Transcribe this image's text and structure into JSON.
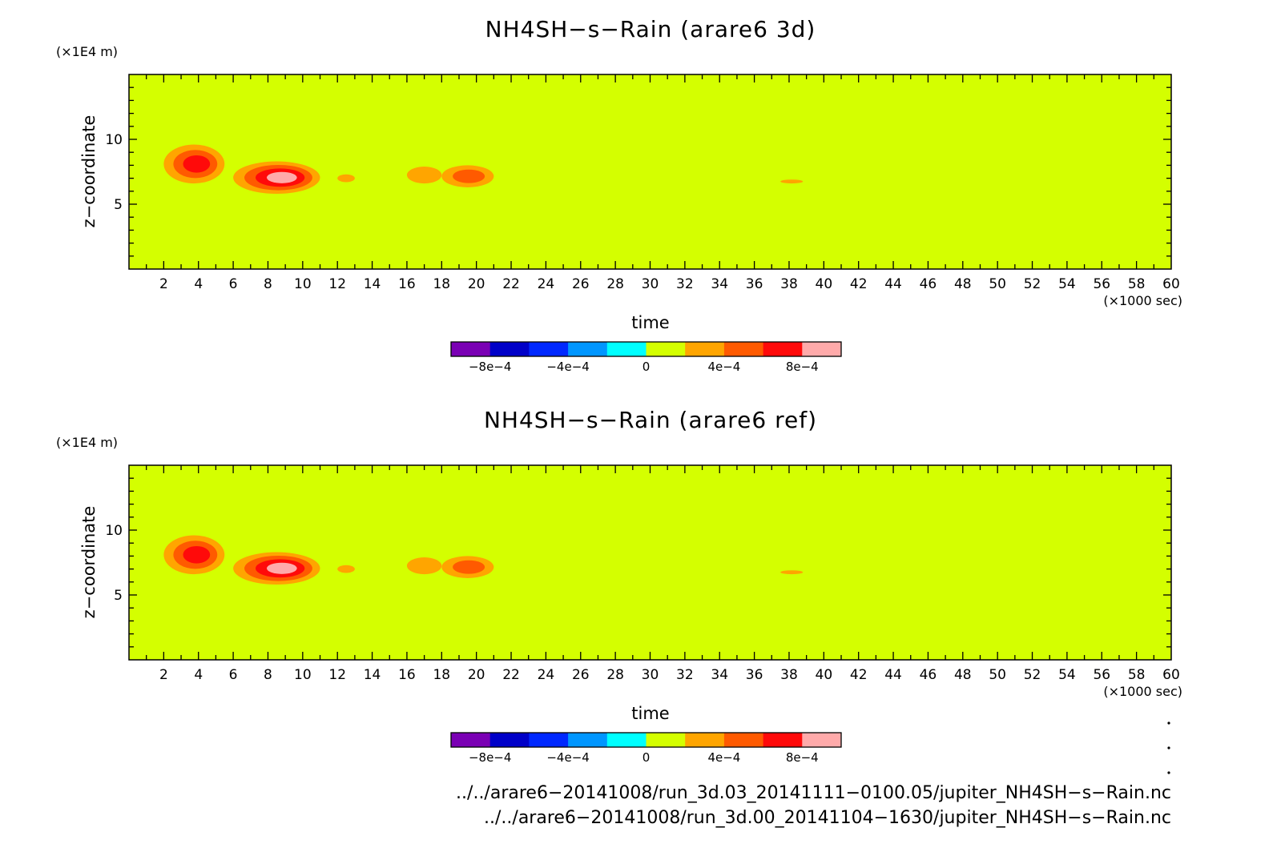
{
  "chart_data": [
    {
      "type": "heatmap",
      "title": "NH4SH−s−Rain (arare6 3d)",
      "xlabel": "time",
      "ylabel": "z−coordinate",
      "x_unit": "(×1000 sec)",
      "y_unit": "(×1E4 m)",
      "xlim": [
        0,
        60
      ],
      "ylim": [
        0,
        15
      ],
      "x_ticks": [
        "2",
        "4",
        "6",
        "8",
        "10",
        "12",
        "14",
        "16",
        "18",
        "20",
        "22",
        "24",
        "26",
        "28",
        "30",
        "32",
        "34",
        "36",
        "38",
        "40",
        "42",
        "44",
        "46",
        "48",
        "50",
        "52",
        "54",
        "56",
        "58",
        "60"
      ],
      "y_ticks": [
        "5",
        "10"
      ],
      "background_level": "0 to 2e-4",
      "features": [
        {
          "x": [
            2,
            5.5
          ],
          "y": [
            6.6,
            9.6
          ],
          "peak_level": "6e-4 to 8e-4"
        },
        {
          "x": [
            6,
            11
          ],
          "y": [
            5.8,
            8.3
          ],
          "peak_level": "8e-4 to 1e-3"
        },
        {
          "x": [
            12,
            13
          ],
          "y": [
            6.7,
            7.3
          ],
          "peak_level": "2e-4 to 4e-4"
        },
        {
          "x": [
            16,
            18
          ],
          "y": [
            6.6,
            7.9
          ],
          "peak_level": "2e-4 to 4e-4"
        },
        {
          "x": [
            18,
            21
          ],
          "y": [
            6.3,
            8.0
          ],
          "peak_level": "4e-4 to 6e-4"
        },
        {
          "x": [
            37.5,
            38.8
          ],
          "y": [
            6.6,
            6.9
          ],
          "peak_level": "2e-4 to 4e-4"
        }
      ]
    },
    {
      "type": "heatmap",
      "title": "NH4SH−s−Rain (arare6 ref)",
      "xlabel": "time",
      "ylabel": "z−coordinate",
      "x_unit": "(×1000 sec)",
      "y_unit": "(×1E4 m)",
      "xlim": [
        0,
        60
      ],
      "ylim": [
        0,
        15
      ],
      "x_ticks": [
        "2",
        "4",
        "6",
        "8",
        "10",
        "12",
        "14",
        "16",
        "18",
        "20",
        "22",
        "24",
        "26",
        "28",
        "30",
        "32",
        "34",
        "36",
        "38",
        "40",
        "42",
        "44",
        "46",
        "48",
        "50",
        "52",
        "54",
        "56",
        "58",
        "60"
      ],
      "y_ticks": [
        "5",
        "10"
      ],
      "background_level": "0 to 2e-4",
      "features": [
        {
          "x": [
            2,
            5.5
          ],
          "y": [
            6.6,
            9.6
          ],
          "peak_level": "6e-4 to 8e-4"
        },
        {
          "x": [
            6,
            11
          ],
          "y": [
            5.8,
            8.3
          ],
          "peak_level": "8e-4 to 1e-3"
        },
        {
          "x": [
            12,
            13
          ],
          "y": [
            6.7,
            7.3
          ],
          "peak_level": "2e-4 to 4e-4"
        },
        {
          "x": [
            16,
            18
          ],
          "y": [
            6.6,
            7.9
          ],
          "peak_level": "2e-4 to 4e-4"
        },
        {
          "x": [
            18,
            21
          ],
          "y": [
            6.3,
            8.0
          ],
          "peak_level": "4e-4 to 6e-4"
        },
        {
          "x": [
            37.5,
            38.8
          ],
          "y": [
            6.6,
            6.9
          ],
          "peak_level": "2e-4 to 4e-4"
        }
      ]
    }
  ],
  "colorbar": {
    "colors": [
      "#7a00b4",
      "#0000c8",
      "#0028ff",
      "#0096ff",
      "#00ffff",
      "#d4ff00",
      "#ffa500",
      "#ff5a00",
      "#ff0a0a",
      "#ffaaaa"
    ],
    "bounds": [
      -0.001,
      -0.0008,
      -0.0006,
      -0.0004,
      -0.0002,
      0,
      0.0002,
      0.0004,
      0.0006,
      0.0008,
      0.001
    ],
    "labels": [
      {
        "text": "−8e−4",
        "at": -0.0008
      },
      {
        "text": "−4e−4",
        "at": -0.0004
      },
      {
        "text": "0",
        "at": 0
      },
      {
        "text": "4e−4",
        "at": 0.0004
      },
      {
        "text": "8e−4",
        "at": 0.0008
      }
    ]
  },
  "files": [
    "../../arare6−20141008/run_3d.03_20141111−0100.05/jupiter_NH4SH−s−Rain.nc",
    "../../arare6−20141008/run_3d.00_20141104−1630/jupiter_NH4SH−s−Rain.nc"
  ]
}
